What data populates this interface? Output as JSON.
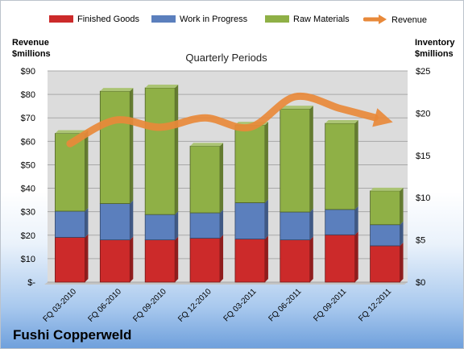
{
  "company": "Fushi Copperweld",
  "colors": {
    "finished": "#cc2a2a",
    "wip": "#5b7fbd",
    "raw": "#8fb046",
    "revenue": "#e8893a",
    "plot_bg": "#dcdcdc"
  },
  "chart_data": {
    "type": "bar",
    "stacked": true,
    "title": "Quarterly Periods",
    "left_axis": {
      "label_line1": "Revenue",
      "label_line2": "$millions",
      "min": 0,
      "max": 90,
      "ticks": [
        "$-",
        "$10",
        "$20",
        "$30",
        "$40",
        "$50",
        "$60",
        "$70",
        "$80",
        "$90"
      ]
    },
    "right_axis": {
      "label_line1": "Inventory",
      "label_line2": "$millions",
      "min": 0,
      "max": 25,
      "ticks": [
        "$0",
        "$5",
        "$10",
        "$15",
        "$20",
        "$25"
      ]
    },
    "categories": [
      "FQ 03-2010",
      "FQ 06-2010",
      "FQ 09-2010",
      "FQ 12-2010",
      "FQ 03-2011",
      "FQ 06-2011",
      "FQ 09-2011",
      "FQ 12-2011"
    ],
    "series": [
      {
        "name": "Finished Goods",
        "axis": "right",
        "values": [
          5.3,
          5.0,
          5.0,
          5.2,
          5.1,
          5.0,
          5.6,
          4.3
        ]
      },
      {
        "name": "Work in Progress",
        "axis": "right",
        "values": [
          3.1,
          4.3,
          3.0,
          3.0,
          4.3,
          3.3,
          3.0,
          2.5
        ]
      },
      {
        "name": "Raw Materials",
        "axis": "right",
        "values": [
          9.2,
          13.3,
          15.0,
          7.9,
          9.2,
          12.2,
          10.2,
          4.0
        ]
      },
      {
        "name": "Revenue",
        "axis": "left",
        "type": "line",
        "values": [
          59,
          69,
          66,
          70,
          66,
          79,
          74,
          69
        ]
      }
    ],
    "legend_position": "top",
    "grid": true
  }
}
